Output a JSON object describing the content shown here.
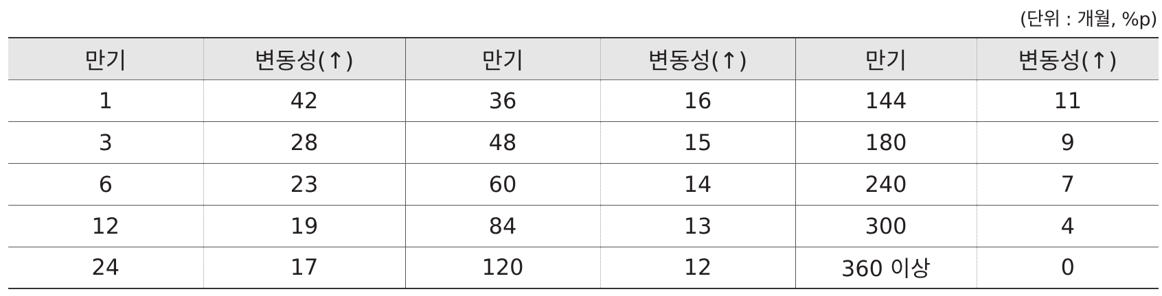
{
  "unit_note": "(단위 : 개월, %p)",
  "columns": [
    "만기",
    "변동성(↑)",
    "만기",
    "변동성(↑)",
    "만기",
    "변동성(↑)"
  ],
  "rows": [
    [
      "1",
      "42",
      "36",
      "16",
      "144",
      "11"
    ],
    [
      "3",
      "28",
      "48",
      "15",
      "180",
      "9"
    ],
    [
      "6",
      "23",
      "60",
      "14",
      "240",
      "7"
    ],
    [
      "12",
      "19",
      "84",
      "13",
      "300",
      "4"
    ],
    [
      "24",
      "17",
      "120",
      "12",
      "360 이상",
      "0"
    ]
  ]
}
